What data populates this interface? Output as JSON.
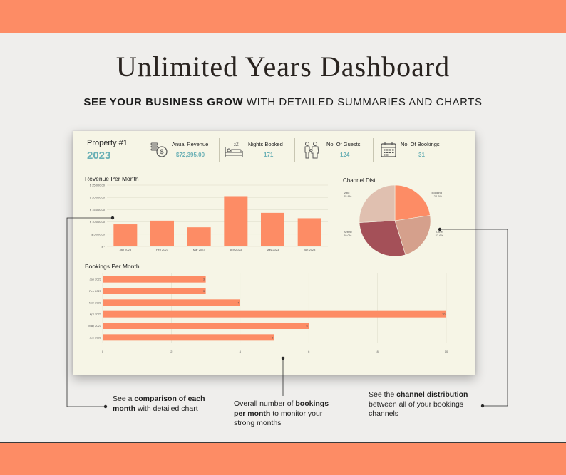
{
  "colors": {
    "band": "#fd8c65",
    "accent": "#6ab0b5",
    "bar": "#fd8c65",
    "dash_bg": "#f6f5e6"
  },
  "title": "Unlimited Years Dashboard",
  "subtitle": {
    "bold": "SEE YOUR BUSINESS GROW",
    "rest": " WITH DETAILED SUMMARIES AND CHARTS"
  },
  "dashboard": {
    "property": {
      "name": "Property #1",
      "year": "2023"
    },
    "kpis": [
      {
        "label": "Anual Revenue",
        "value": "$72,395.00",
        "icon": "money-bag-icon"
      },
      {
        "label": "Nights Booked",
        "value": "171",
        "icon": "bed-icon"
      },
      {
        "label": "No. Of Guests",
        "value": "124",
        "icon": "guests-icon"
      },
      {
        "label": "No. Of Bookings",
        "value": "31",
        "icon": "calendar-icon"
      }
    ]
  },
  "chart_data": [
    {
      "type": "bar",
      "title": "Revenue Per Month",
      "categories": [
        "Jan 2023",
        "Feb 2023",
        "Mar 2023",
        "Apr 2023",
        "May 2023",
        "Jun 2023"
      ],
      "values": [
        9000,
        10500,
        7800,
        20500,
        13700,
        11500
      ],
      "ylim": [
        0,
        25000
      ],
      "yticks": [
        0,
        5000,
        10000,
        15000,
        20000,
        25000
      ],
      "ytick_labels": [
        "$ -",
        "$ 5,000.00",
        "$ 10,000.00",
        "$ 15,000.00",
        "$ 20,000.00",
        "$ 25,000.00"
      ],
      "grid": true
    },
    {
      "type": "pie",
      "title": "Channel Dist.",
      "slices": [
        {
          "name": "Booking",
          "value": 22.6,
          "label": "22.6%",
          "color": "#fd8c65"
        },
        {
          "name": "Other",
          "value": 22.6,
          "label": "22.6%",
          "color": "#d5a08c"
        },
        {
          "name": "Airbnb",
          "value": 29.0,
          "label": "29.0%",
          "color": "#a45058"
        },
        {
          "name": "Vrbo",
          "value": 25.8,
          "label": "25.8%",
          "color": "#e0c0b0"
        }
      ]
    },
    {
      "type": "bar",
      "orientation": "horizontal",
      "title": "Bookings Per Month",
      "categories": [
        "Jan 2023",
        "Feb 2023",
        "Mar 2023",
        "Apr 2023",
        "May 2023",
        "Jun 2023"
      ],
      "values": [
        3,
        3,
        4,
        10,
        6,
        5
      ],
      "xlim": [
        0,
        10
      ],
      "xticks": [
        0,
        2,
        4,
        6,
        8,
        10
      ],
      "grid": true
    }
  ],
  "callouts": [
    {
      "pre": "See a ",
      "bold1": "comparison of each month",
      "post": " with detailed chart"
    },
    {
      "pre": "Overall number of ",
      "bold1": "bookings per month",
      "post": " to monitor your strong months"
    },
    {
      "pre": "See the ",
      "bold1": "channel distribution",
      "post": " between all of your bookings channels"
    }
  ]
}
